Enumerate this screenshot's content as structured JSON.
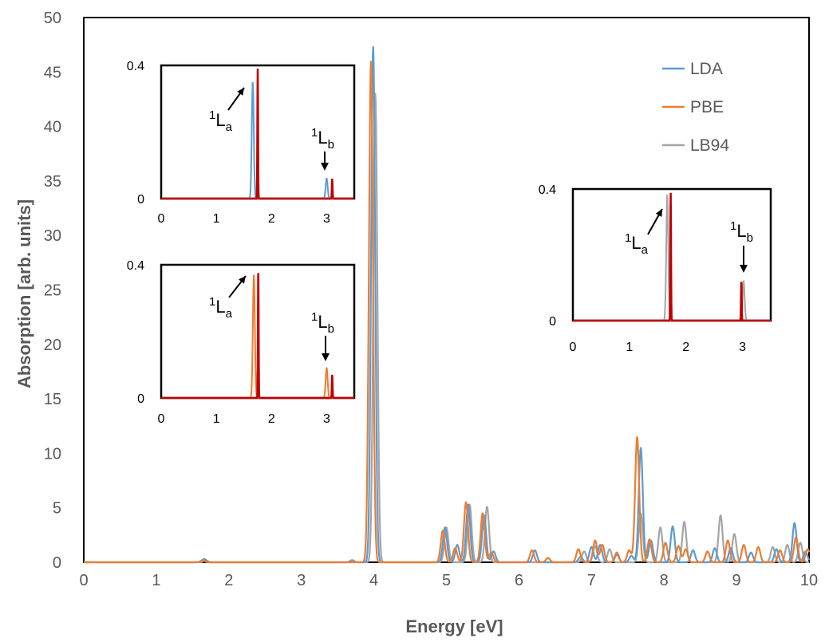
{
  "chart_data": [
    {
      "type": "line",
      "xlabel": "Energy [eV]",
      "ylabel": "Absorption [arb. units]",
      "xlim": [
        0,
        10
      ],
      "ylim": [
        0,
        50
      ],
      "xticks": [
        "0",
        "1",
        "2",
        "3",
        "4",
        "5",
        "6",
        "7",
        "8",
        "9",
        "10"
      ],
      "yticks": [
        "0",
        "5",
        "10",
        "15",
        "20",
        "25",
        "30",
        "35",
        "40",
        "45",
        "50"
      ],
      "grid": false,
      "legend": "top-right",
      "series": [
        {
          "name": "LDA",
          "color": "#5B9BD5",
          "peaks": [
            [
              1.66,
              0.3
            ],
            [
              3.7,
              0.1
            ],
            [
              3.99,
              47.3
            ],
            [
              4.98,
              3.2
            ],
            [
              5.15,
              1.6
            ],
            [
              5.3,
              5.3
            ],
            [
              5.52,
              4.3
            ],
            [
              5.65,
              1.0
            ],
            [
              6.22,
              1.1
            ],
            [
              6.85,
              0.5
            ],
            [
              7.0,
              1.4
            ],
            [
              7.12,
              1.6
            ],
            [
              7.35,
              0.7
            ],
            [
              7.55,
              0.6
            ],
            [
              7.68,
              10.5
            ],
            [
              7.82,
              2.0
            ],
            [
              8.12,
              3.3
            ],
            [
              8.4,
              1.1
            ],
            [
              8.7,
              1.3
            ],
            [
              8.92,
              1.3
            ],
            [
              9.2,
              0.9
            ],
            [
              9.55,
              1.2
            ],
            [
              9.8,
              3.6
            ],
            [
              9.95,
              1.0
            ]
          ]
        },
        {
          "name": "PBE",
          "color": "#ED7D31",
          "peaks": [
            [
              1.64,
              0.2
            ],
            [
              3.92,
              0.4
            ],
            [
              3.96,
              45.8
            ],
            [
              4.95,
              2.9
            ],
            [
              5.12,
              1.3
            ],
            [
              5.27,
              5.5
            ],
            [
              5.5,
              4.5
            ],
            [
              5.62,
              0.9
            ],
            [
              6.18,
              1.1
            ],
            [
              6.4,
              0.4
            ],
            [
              6.82,
              1.2
            ],
            [
              7.05,
              2.0
            ],
            [
              7.15,
              1.6
            ],
            [
              7.35,
              0.9
            ],
            [
              7.52,
              1.1
            ],
            [
              7.63,
              11.5
            ],
            [
              7.8,
              2.1
            ],
            [
              8.02,
              1.8
            ],
            [
              8.2,
              1.5
            ],
            [
              8.3,
              1.2
            ],
            [
              8.6,
              1.0
            ],
            [
              8.88,
              2.0
            ],
            [
              9.1,
              1.6
            ],
            [
              9.3,
              1.4
            ],
            [
              9.6,
              1.1
            ],
            [
              9.82,
              2.3
            ],
            [
              9.98,
              1.2
            ]
          ]
        },
        {
          "name": "LB94",
          "color": "#A5A5A5",
          "peaks": [
            [
              1.68,
              0.2
            ],
            [
              3.7,
              0.2
            ],
            [
              4.02,
              43.0
            ],
            [
              5.0,
              3.2
            ],
            [
              5.32,
              5.3
            ],
            [
              5.56,
              5.1
            ],
            [
              6.9,
              1.0
            ],
            [
              7.05,
              1.5
            ],
            [
              7.25,
              1.2
            ],
            [
              7.68,
              4.5
            ],
            [
              7.95,
              3.2
            ],
            [
              8.28,
              3.7
            ],
            [
              8.78,
              4.3
            ],
            [
              8.97,
              2.6
            ],
            [
              9.5,
              1.4
            ],
            [
              9.7,
              1.6
            ],
            [
              9.88,
              1.8
            ]
          ]
        }
      ],
      "annotations": []
    },
    {
      "type": "line",
      "inset": "top-left",
      "xlim": [
        0,
        3.5
      ],
      "ylim": [
        0,
        0.4
      ],
      "xticks": [
        "0",
        "1",
        "2",
        "3"
      ],
      "yticks": [
        "0",
        "0.4"
      ],
      "series": [
        {
          "color": "#5B9BD5",
          "peaks": [
            [
              1.66,
              0.35
            ],
            [
              3.0,
              0.06
            ]
          ]
        },
        {
          "color": "#C00000",
          "peaks": [
            [
              1.75,
              0.39
            ],
            [
              3.1,
              0.06
            ]
          ]
        }
      ],
      "annotations": [
        {
          "sup": "1",
          "main": "L",
          "sub": "a"
        },
        {
          "sup": "1",
          "main": "L",
          "sub": "b"
        }
      ]
    },
    {
      "type": "line",
      "inset": "middle-left",
      "xlim": [
        0,
        3.5
      ],
      "ylim": [
        0,
        0.4
      ],
      "xticks": [
        "0",
        "1",
        "2",
        "3"
      ],
      "yticks": [
        "0",
        "0.4"
      ],
      "series": [
        {
          "color": "#ED7D31",
          "peaks": [
            [
              1.68,
              0.37
            ],
            [
              3.0,
              0.09
            ]
          ]
        },
        {
          "color": "#C00000",
          "peaks": [
            [
              1.76,
              0.39
            ],
            [
              3.1,
              0.07
            ]
          ]
        }
      ],
      "annotations": [
        {
          "sup": "1",
          "main": "L",
          "sub": "a"
        },
        {
          "sup": "1",
          "main": "L",
          "sub": "b"
        }
      ]
    },
    {
      "type": "line",
      "inset": "right",
      "xlim": [
        0,
        3.5
      ],
      "ylim": [
        0,
        0.4
      ],
      "xticks": [
        "0",
        "1",
        "2",
        "3"
      ],
      "yticks": [
        "0",
        "0.4"
      ],
      "series": [
        {
          "color": "#A5A5A5",
          "peaks": [
            [
              1.67,
              0.38
            ],
            [
              3.02,
              0.12
            ]
          ]
        },
        {
          "color": "#C00000",
          "peaks": [
            [
              1.73,
              0.39
            ],
            [
              2.98,
              0.12
            ]
          ]
        }
      ],
      "annotations": [
        {
          "sup": "1",
          "main": "L",
          "sub": "a"
        },
        {
          "sup": "1",
          "main": "L",
          "sub": "b"
        }
      ]
    }
  ]
}
